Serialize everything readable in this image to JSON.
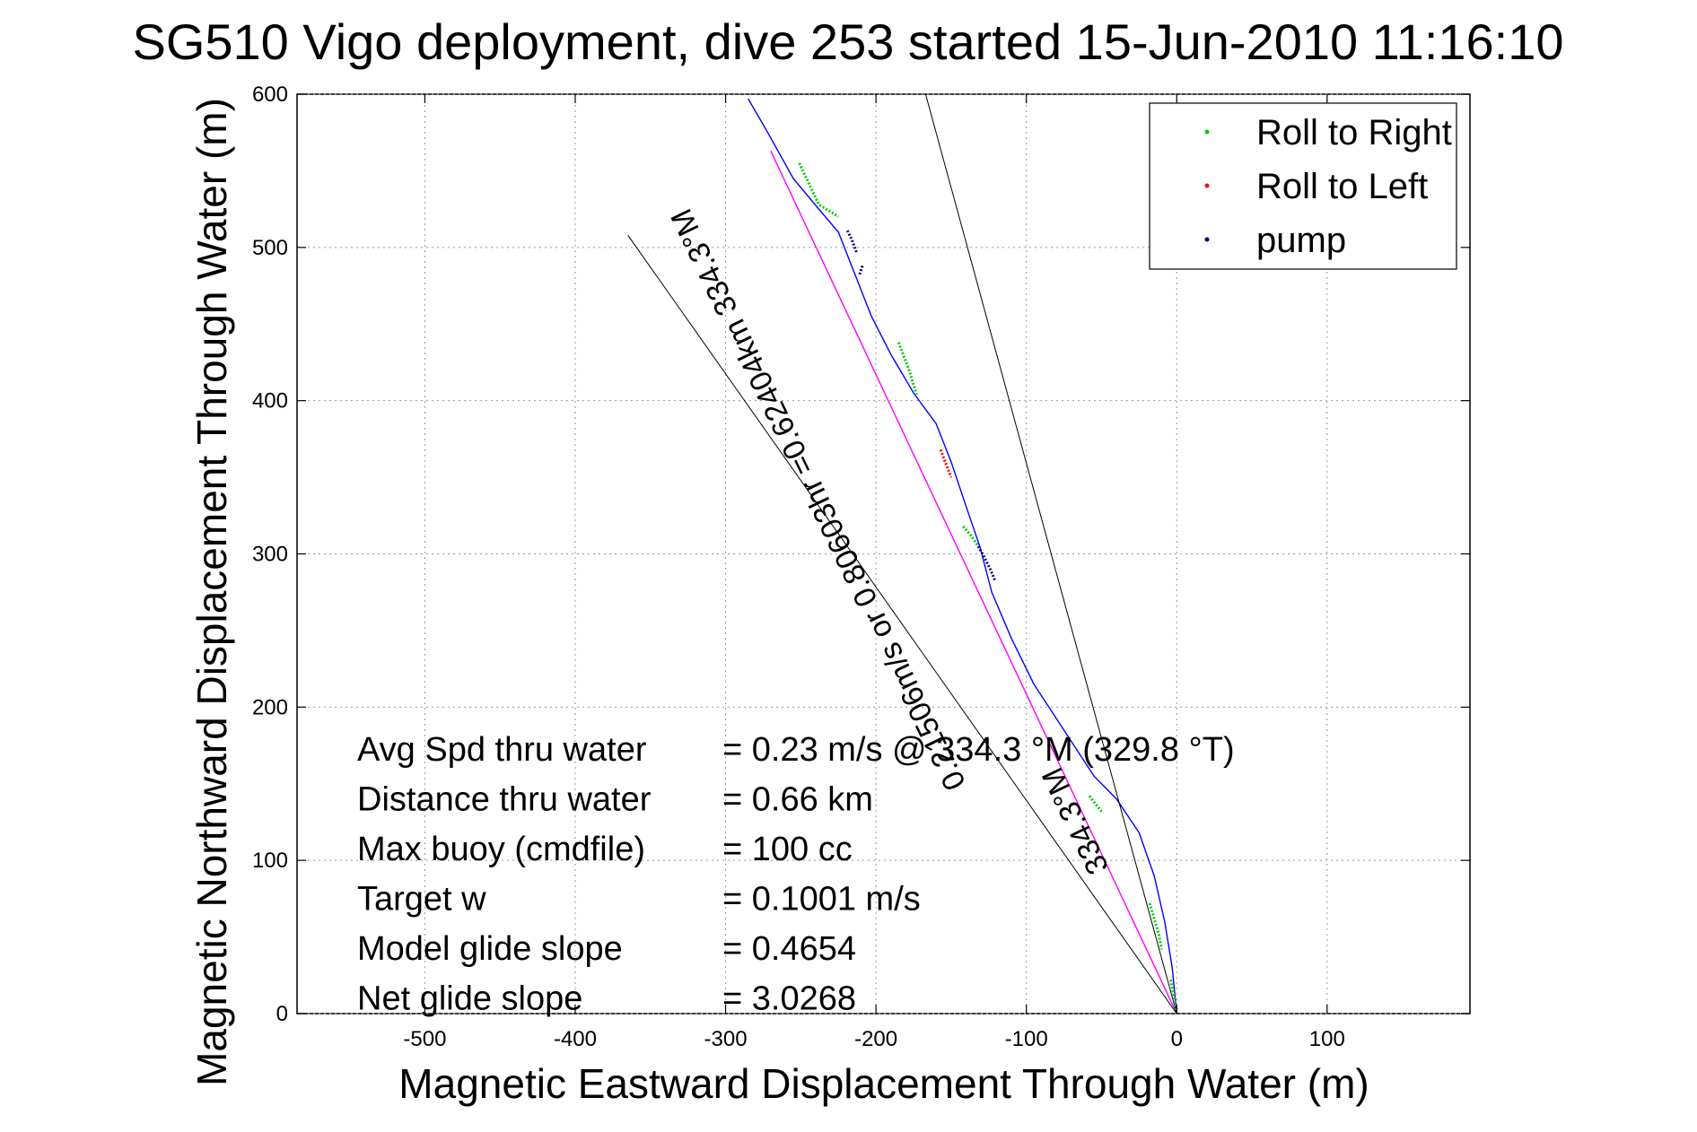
{
  "chart_data": {
    "type": "line",
    "title": "SG510 Vigo deployment, dive 253 started 15-Jun-2010 11:16:10",
    "xlabel": "Magnetic Eastward Displacement Through Water (m)",
    "ylabel": "Magnetic Northward Displacement Through Water (m)",
    "xlim": [
      -585,
      195
    ],
    "ylim": [
      0,
      600
    ],
    "xticks": [
      -500,
      -400,
      -300,
      -200,
      -100,
      0,
      100
    ],
    "yticks": [
      0,
      100,
      200,
      300,
      400,
      500,
      600
    ],
    "grid": true,
    "legend_position": "top-right",
    "legend": [
      {
        "label": "Roll to Right",
        "color": "#00cc00"
      },
      {
        "label": "Roll to Left",
        "color": "#ff0000"
      },
      {
        "label": "pump",
        "color": "#000080"
      }
    ],
    "series": [
      {
        "name": "track",
        "color": "#0000ff",
        "x": [
          0,
          -3,
          -8,
          -15,
          -25,
          -40,
          -55,
          -75,
          -95,
          -110,
          -123,
          -131,
          -138,
          -150,
          -160,
          -175,
          -190,
          -203,
          -215,
          -225,
          -238,
          -255,
          -272,
          -285
        ],
        "y": [
          0,
          30,
          60,
          90,
          118,
          140,
          155,
          185,
          215,
          245,
          275,
          305,
          325,
          360,
          385,
          405,
          430,
          455,
          485,
          510,
          525,
          545,
          575,
          597
        ]
      },
      {
        "name": "current",
        "color": "#ff00ff",
        "x": [
          0,
          -270
        ],
        "y": [
          0,
          563
        ]
      },
      {
        "name": "bound1",
        "color": "#000000",
        "x": [
          0,
          -365
        ],
        "y": [
          0,
          508
        ]
      },
      {
        "name": "bound2",
        "color": "#000000",
        "x": [
          0,
          -167
        ],
        "y": [
          0,
          600
        ]
      }
    ],
    "roll_right": [
      {
        "x": [
          -251,
          -238,
          -225
        ],
        "y": [
          555,
          528,
          520
        ]
      },
      {
        "x": [
          -185,
          -178,
          -173
        ],
        "y": [
          438,
          420,
          404
        ]
      },
      {
        "x": [
          -142,
          -136,
          -132
        ],
        "y": [
          318,
          311,
          305
        ]
      },
      {
        "x": [
          -58,
          -55,
          -50
        ],
        "y": [
          142,
          138,
          132
        ]
      },
      {
        "x": [
          -18,
          -15,
          -12,
          -10
        ],
        "y": [
          72,
          62,
          52,
          42
        ]
      },
      {
        "x": [
          -4,
          -2,
          0
        ],
        "y": [
          22,
          12,
          2
        ]
      }
    ],
    "roll_left": [
      {
        "x": [
          -157,
          -154,
          -150
        ],
        "y": [
          368,
          360,
          350
        ]
      }
    ],
    "pump": [
      {
        "x": [
          -132,
          -128,
          -124,
          -121
        ],
        "y": [
          305,
          298,
          290,
          283
        ]
      },
      {
        "x": [
          -219,
          -216,
          -213
        ],
        "y": [
          511,
          505,
          497
        ]
      },
      {
        "x": [
          -209,
          -211
        ],
        "y": [
          488,
          482
        ]
      }
    ],
    "annotations": [
      {
        "text": "0.21506m/s or 0.80603hr =0.62404km  334.3°M",
        "x": -140,
        "y": 150
      },
      {
        "text": "334.3°M",
        "x": -45,
        "y": 95
      }
    ],
    "stats": [
      {
        "label": "Avg Spd thru water",
        "value": "=  0.23 m/s @ 334.3 °M (329.8 °T)"
      },
      {
        "label": "Distance thru water",
        "value": "=  0.66 km"
      },
      {
        "label": "Max buoy (cmdfile)",
        "value": "= 100 cc"
      },
      {
        "label": "Target w",
        "value": "= 0.1001 m/s"
      },
      {
        "label": "Model glide slope",
        "value": "= 0.4654"
      },
      {
        "label": "Net glide slope",
        "value": "= 3.0268"
      }
    ]
  }
}
